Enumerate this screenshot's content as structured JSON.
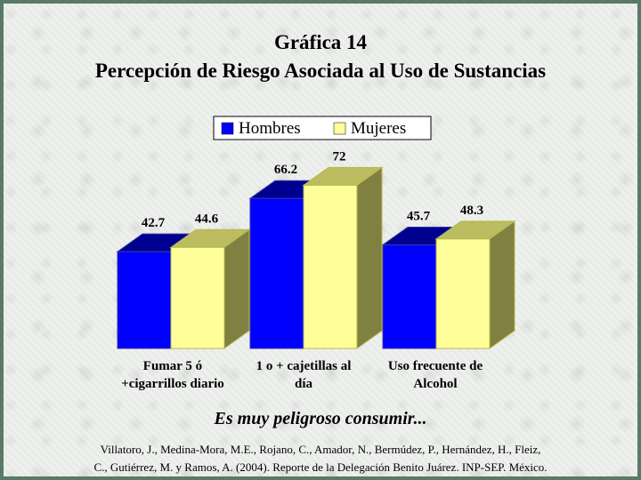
{
  "header": {
    "title_line1": "Gráfica 14",
    "title_line2": "Percepción de Riesgo Asociada al Uso de Sustancias"
  },
  "chart_data": {
    "type": "bar",
    "categories_text": [
      [
        "Fumar 5 ó",
        "+cigarrillos diario"
      ],
      [
        "1 o + cajetillas al",
        "día"
      ],
      [
        "Uso frecuente de",
        "Alcohol"
      ]
    ],
    "series": [
      {
        "name": "Hombres",
        "values": [
          42.7,
          66.2,
          45.7
        ],
        "labels": [
          "42.7",
          "66.2",
          "45.7"
        ],
        "color": "#0000ff"
      },
      {
        "name": "Mujeres",
        "values": [
          44.6,
          72,
          48.3
        ],
        "labels": [
          "44.6",
          "72",
          "48.3"
        ],
        "color": "#ffff99"
      }
    ],
    "ylim": [
      0,
      80
    ],
    "grid": false,
    "legend_position": "top-center"
  },
  "footer": {
    "subtitle": "Es muy peligroso consumir...",
    "citation_line1": "Villatoro, J., Medina-Mora, M.E., Rojano, C., Amador, N., Bermúdez, P., Hernández, H., Fleiz,",
    "citation_line2": "C., Gutiérrez, M. y Ramos, A. (2004). Reporte de la Delegación Benito Juárez. INP-SEP. México."
  }
}
